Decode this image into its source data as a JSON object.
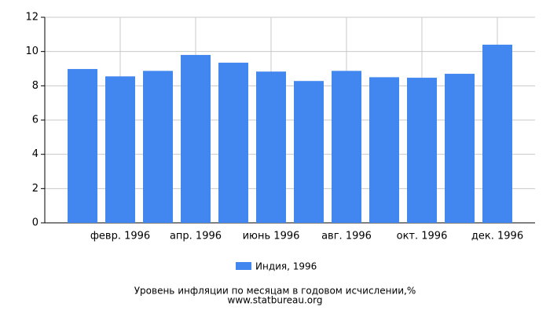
{
  "chart_data": {
    "type": "bar",
    "categories": [
      null,
      "февр. 1996",
      null,
      "апр. 1996",
      null,
      "июнь 1996",
      null,
      "авг. 1996",
      null,
      "окт. 1996",
      null,
      "дек. 1996"
    ],
    "series": [
      {
        "name": "Индия, 1996",
        "color": "#4286f0",
        "values": [
          8.98,
          8.55,
          8.87,
          9.8,
          9.35,
          8.83,
          8.28,
          8.87,
          8.5,
          8.47,
          8.7,
          10.4
        ]
      }
    ],
    "ylim": [
      0,
      12
    ],
    "yticks": [
      0,
      2,
      4,
      6,
      8,
      10,
      12
    ],
    "grid": true,
    "footer": [
      "Уровень инфляции по месяцам в годовом исчислении,%",
      "www.statbureau.org"
    ]
  }
}
